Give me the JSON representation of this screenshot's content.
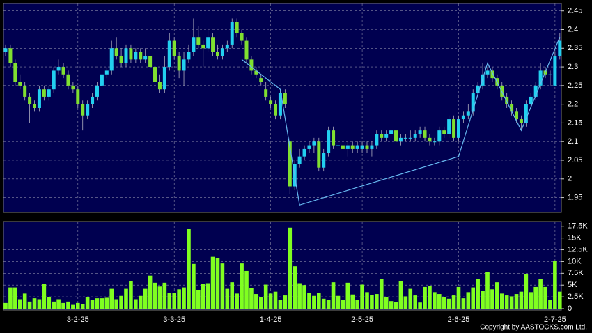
{
  "chart_data": [
    {
      "type": "candlestick",
      "up_color": "#22d0f0",
      "down_color": "#80e030",
      "background": "#000050",
      "grid": true,
      "ylim": [
        1.91,
        2.47
      ],
      "yticks": [
        1.95,
        2,
        2.05,
        2.1,
        2.15,
        2.2,
        2.25,
        2.3,
        2.35,
        2.4,
        2.45
      ],
      "categories": [
        null,
        null,
        null,
        null,
        null,
        null,
        null,
        null,
        null,
        null,
        null,
        null,
        null,
        null,
        null,
        "3-2-25",
        null,
        null,
        null,
        null,
        null,
        null,
        null,
        null,
        null,
        null,
        null,
        null,
        null,
        null,
        null,
        null,
        null,
        null,
        null,
        "3-3-25",
        null,
        null,
        null,
        null,
        null,
        null,
        null,
        null,
        null,
        null,
        null,
        null,
        null,
        null,
        null,
        null,
        null,
        null,
        null,
        "1-4-25",
        null,
        null,
        null,
        null,
        null,
        null,
        null,
        null,
        null,
        null,
        null,
        null,
        null,
        null,
        null,
        null,
        null,
        null,
        "2-5-25",
        null,
        null,
        null,
        null,
        null,
        null,
        null,
        null,
        null,
        null,
        null,
        null,
        null,
        null,
        null,
        null,
        null,
        null,
        null,
        "2-6-25",
        null,
        null,
        null,
        null,
        null,
        null,
        null,
        null,
        null,
        null,
        null,
        null,
        null,
        null,
        null,
        null,
        null,
        null,
        null,
        "2-7-25",
        null
      ],
      "candles": [
        [
          2.34,
          2.36,
          2.33,
          2.35
        ],
        [
          2.35,
          2.36,
          2.3,
          2.31
        ],
        [
          2.31,
          2.32,
          2.25,
          2.26
        ],
        [
          2.26,
          2.28,
          2.24,
          2.25
        ],
        [
          2.25,
          2.26,
          2.21,
          2.22
        ],
        [
          2.22,
          2.23,
          2.15,
          2.2
        ],
        [
          2.2,
          2.21,
          2.18,
          2.19
        ],
        [
          2.19,
          2.25,
          2.18,
          2.24
        ],
        [
          2.24,
          2.25,
          2.21,
          2.22
        ],
        [
          2.22,
          2.25,
          2.21,
          2.24
        ],
        [
          2.24,
          2.3,
          2.23,
          2.29
        ],
        [
          2.29,
          2.32,
          2.28,
          2.3
        ],
        [
          2.3,
          2.31,
          2.27,
          2.28
        ],
        [
          2.28,
          2.29,
          2.24,
          2.25
        ],
        [
          2.25,
          2.26,
          2.23,
          2.24
        ],
        [
          2.24,
          2.25,
          2.19,
          2.2
        ],
        [
          2.2,
          2.21,
          2.13,
          2.17
        ],
        [
          2.17,
          2.21,
          2.16,
          2.2
        ],
        [
          2.2,
          2.23,
          2.19,
          2.22
        ],
        [
          2.22,
          2.26,
          2.21,
          2.25
        ],
        [
          2.25,
          2.29,
          2.24,
          2.28
        ],
        [
          2.28,
          2.3,
          2.27,
          2.29
        ],
        [
          2.29,
          2.37,
          2.28,
          2.35
        ],
        [
          2.35,
          2.38,
          2.32,
          2.33
        ],
        [
          2.33,
          2.35,
          2.3,
          2.31
        ],
        [
          2.31,
          2.36,
          2.3,
          2.35
        ],
        [
          2.35,
          2.36,
          2.31,
          2.32
        ],
        [
          2.32,
          2.35,
          2.31,
          2.34
        ],
        [
          2.34,
          2.35,
          2.31,
          2.32
        ],
        [
          2.32,
          2.35,
          2.31,
          2.33
        ],
        [
          2.33,
          2.34,
          2.29,
          2.3
        ],
        [
          2.3,
          2.31,
          2.24,
          2.26
        ],
        [
          2.26,
          2.28,
          2.23,
          2.24
        ],
        [
          2.24,
          2.33,
          2.23,
          2.3
        ],
        [
          2.3,
          2.39,
          2.29,
          2.37
        ],
        [
          2.37,
          2.38,
          2.32,
          2.33
        ],
        [
          2.33,
          2.34,
          2.27,
          2.29
        ],
        [
          2.29,
          2.34,
          2.25,
          2.32
        ],
        [
          2.32,
          2.36,
          2.31,
          2.34
        ],
        [
          2.34,
          2.43,
          2.33,
          2.38
        ],
        [
          2.38,
          2.41,
          2.35,
          2.36
        ],
        [
          2.36,
          2.37,
          2.3,
          2.35
        ],
        [
          2.35,
          2.4,
          2.34,
          2.38
        ],
        [
          2.38,
          2.39,
          2.33,
          2.34
        ],
        [
          2.34,
          2.36,
          2.32,
          2.33
        ],
        [
          2.33,
          2.36,
          2.32,
          2.35
        ],
        [
          2.35,
          2.37,
          2.34,
          2.36
        ],
        [
          2.36,
          2.43,
          2.35,
          2.42
        ],
        [
          2.42,
          2.43,
          2.38,
          2.39
        ],
        [
          2.39,
          2.4,
          2.36,
          2.37
        ],
        [
          2.37,
          2.38,
          2.31,
          2.32
        ],
        [
          2.32,
          2.33,
          2.28,
          2.29
        ],
        [
          2.29,
          2.3,
          2.27,
          2.28
        ],
        [
          2.27,
          2.28,
          2.25,
          2.26
        ],
        [
          2.24,
          2.26,
          2.21,
          2.22
        ],
        [
          2.21,
          2.22,
          2.19,
          2.2
        ],
        [
          2.2,
          2.21,
          2.16,
          2.17
        ],
        [
          2.17,
          2.24,
          2.16,
          2.23
        ],
        [
          2.23,
          2.24,
          2.19,
          2.2
        ],
        [
          2.1,
          2.11,
          1.96,
          1.98
        ],
        [
          1.98,
          2.05,
          1.97,
          2.04
        ],
        [
          2.04,
          2.08,
          2.03,
          2.06
        ],
        [
          2.06,
          2.09,
          2.05,
          2.08
        ],
        [
          2.08,
          2.1,
          2.07,
          2.09
        ],
        [
          2.09,
          2.11,
          2.07,
          2.1
        ],
        [
          2.1,
          2.11,
          2.02,
          2.03
        ],
        [
          2.03,
          2.08,
          2.02,
          2.07
        ],
        [
          2.07,
          2.14,
          2.06,
          2.13
        ],
        [
          2.13,
          2.14,
          2.08,
          2.09
        ],
        [
          2.09,
          2.1,
          2.07,
          2.09
        ],
        [
          2.09,
          2.1,
          2.07,
          2.08
        ],
        [
          2.08,
          2.1,
          2.06,
          2.09
        ],
        [
          2.09,
          2.1,
          2.07,
          2.08
        ],
        [
          2.08,
          2.1,
          2.07,
          2.09
        ],
        [
          2.08,
          2.1,
          2.07,
          2.09
        ],
        [
          2.09,
          2.1,
          2.07,
          2.08
        ],
        [
          2.08,
          2.1,
          2.06,
          2.09
        ],
        [
          2.09,
          2.13,
          2.08,
          2.12
        ],
        [
          2.12,
          2.13,
          2.1,
          2.11
        ],
        [
          2.11,
          2.13,
          2.1,
          2.12
        ],
        [
          2.12,
          2.14,
          2.11,
          2.13
        ],
        [
          2.13,
          2.14,
          2.09,
          2.1
        ],
        [
          2.1,
          2.12,
          2.09,
          2.11
        ],
        [
          2.11,
          2.12,
          2.1,
          2.11
        ],
        [
          2.11,
          2.13,
          2.1,
          2.11
        ],
        [
          2.11,
          2.13,
          2.1,
          2.12
        ],
        [
          2.12,
          2.14,
          2.11,
          2.13
        ],
        [
          2.13,
          2.14,
          2.1,
          2.11
        ],
        [
          2.11,
          2.12,
          2.09,
          2.1
        ],
        [
          2.1,
          2.11,
          2.09,
          2.1
        ],
        [
          2.1,
          2.14,
          2.09,
          2.13
        ],
        [
          2.13,
          2.14,
          2.11,
          2.12
        ],
        [
          2.12,
          2.17,
          2.11,
          2.16
        ],
        [
          2.16,
          2.17,
          2.1,
          2.11
        ],
        [
          2.11,
          2.17,
          2.1,
          2.16
        ],
        [
          2.16,
          2.18,
          2.15,
          2.17
        ],
        [
          2.17,
          2.2,
          2.16,
          2.18
        ],
        [
          2.18,
          2.24,
          2.17,
          2.23
        ],
        [
          2.23,
          2.26,
          2.22,
          2.25
        ],
        [
          2.25,
          2.31,
          2.24,
          2.28
        ],
        [
          2.28,
          2.3,
          2.27,
          2.29
        ],
        [
          2.29,
          2.3,
          2.26,
          2.27
        ],
        [
          2.27,
          2.28,
          2.24,
          2.25
        ],
        [
          2.25,
          2.26,
          2.21,
          2.22
        ],
        [
          2.22,
          2.23,
          2.19,
          2.2
        ],
        [
          2.2,
          2.21,
          2.17,
          2.18
        ],
        [
          2.18,
          2.19,
          2.15,
          2.16
        ],
        [
          2.16,
          2.17,
          2.13,
          2.15
        ],
        [
          2.15,
          2.21,
          2.14,
          2.2
        ],
        [
          2.2,
          2.23,
          2.19,
          2.22
        ],
        [
          2.22,
          2.26,
          2.21,
          2.25
        ],
        [
          2.25,
          2.31,
          2.24,
          2.29
        ],
        [
          2.29,
          2.3,
          2.27,
          2.28
        ],
        [
          2.28,
          2.29,
          2.25,
          2.28
        ],
        [
          2.25,
          2.34,
          2.25,
          2.33
        ],
        [
          2.33,
          2.39,
          2.32,
          2.37
        ]
      ],
      "zigzag": {
        "color": "#66b8f0",
        "x": [
          49,
          57,
          61,
          94,
          100,
          107,
          115
        ],
        "values": [
          2.32,
          2.24,
          1.93,
          2.06,
          2.31,
          2.13,
          2.38
        ]
      }
    },
    {
      "type": "bar",
      "color": "#80ff20",
      "grid": true,
      "ylim": [
        0,
        18500
      ],
      "yticks": [
        0,
        {
          "value": 2500,
          "label": "2.5K"
        },
        {
          "value": 5000,
          "label": "5K"
        },
        {
          "value": 7500,
          "label": "7.5K"
        },
        {
          "value": 10000,
          "label": "10K"
        },
        {
          "value": 12500,
          "label": "12.5K"
        },
        {
          "value": 15000,
          "label": "15K"
        },
        {
          "value": 17500,
          "label": "17.5K"
        }
      ],
      "values": [
        1200,
        4500,
        4500,
        2000,
        3200,
        1500,
        2200,
        2000,
        5200,
        2500,
        1500,
        2000,
        1200,
        1500,
        800,
        1200,
        1000,
        2400,
        1800,
        2200,
        2200,
        2300,
        4200,
        2000,
        2700,
        4200,
        5800,
        2000,
        2700,
        4200,
        7000,
        5500,
        4700,
        5500,
        3300,
        3400,
        4100,
        4500,
        17000,
        9500,
        4000,
        5300,
        5400,
        11000,
        10800,
        9600,
        4200,
        5600,
        3200,
        9600,
        8000,
        4300,
        3100,
        2400,
        5100,
        3200,
        3600,
        1900,
        2800,
        17200,
        9000,
        5400,
        5000,
        3400,
        2700,
        3400,
        2100,
        1800,
        5600,
        2700,
        1900,
        5500,
        3000,
        1800,
        5100,
        3500,
        2900,
        3100,
        6300,
        2500,
        1600,
        1400,
        5800,
        2600,
        4200,
        2800,
        1300,
        4600,
        4800,
        3500,
        3100,
        2500,
        2100,
        2800,
        4600,
        2200,
        3500,
        4500,
        6300,
        3800,
        7800,
        4100,
        5600,
        3200,
        2800,
        2600,
        3100,
        3600,
        7300,
        3500,
        4600,
        6300,
        4600,
        1800,
        10200,
        3600
      ]
    }
  ],
  "footer": "Copyright by AASTOCKS.com Ltd."
}
